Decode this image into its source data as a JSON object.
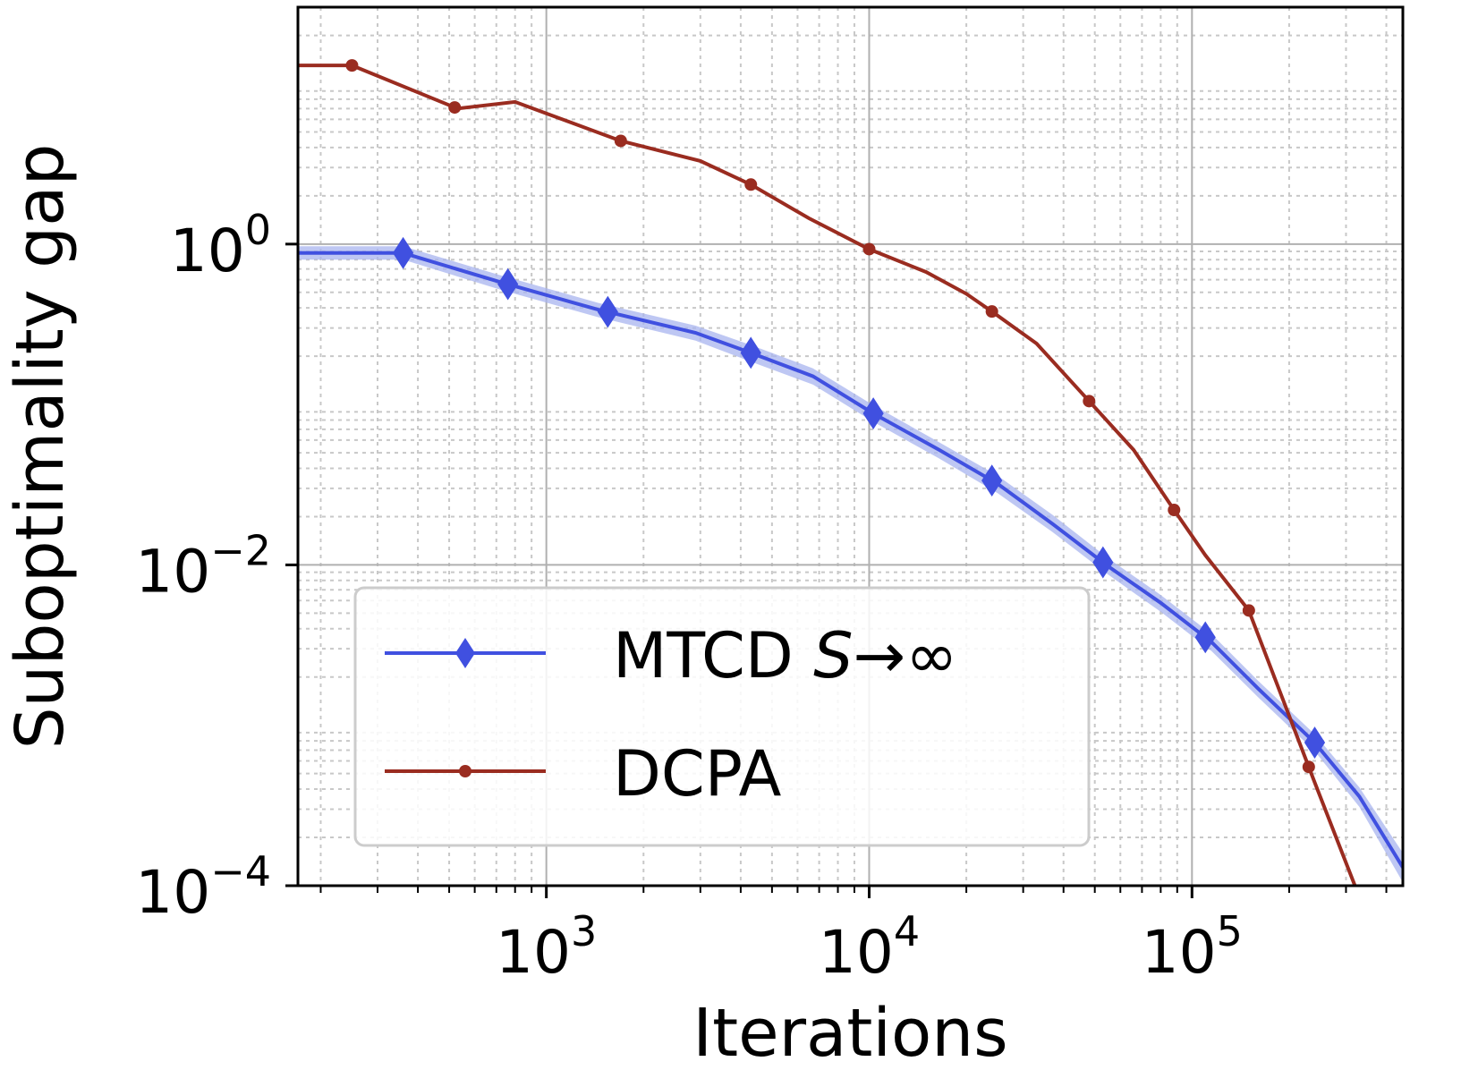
{
  "chart_data": {
    "type": "line",
    "title": "",
    "xlabel": "Iterations",
    "ylabel": "Suboptimality gap",
    "xscale": "log",
    "yscale": "log",
    "xlim": [
      170,
      450000
    ],
    "ylim": [
      0.0001,
      30
    ],
    "grid": true,
    "legend_position": "lower-left",
    "x_ticks": [
      {
        "value": 1000,
        "base": "10",
        "exp": "3"
      },
      {
        "value": 10000,
        "base": "10",
        "exp": "4"
      },
      {
        "value": 100000,
        "base": "10",
        "exp": "5"
      }
    ],
    "y_ticks": [
      {
        "value": 1,
        "base": "10",
        "exp": "0"
      },
      {
        "value": 0.01,
        "base": "10",
        "exp": "−2"
      },
      {
        "value": 0.0001,
        "base": "10",
        "exp": "−4"
      }
    ],
    "series": [
      {
        "name": "MTCD S→∞",
        "legend_main": "MTCD ",
        "legend_var": "S",
        "legend_tail": "→∞",
        "color": "#4050e0",
        "band_color": "#a8b4ef",
        "marker": "diamond",
        "x": [
          170,
          360,
          720,
          1450,
          2900,
          4300,
          6700,
          10300,
          16500,
          25000,
          37000,
          55000,
          80000,
          115000,
          160000,
          240000,
          330000,
          450000
        ],
        "y": [
          0.88,
          0.88,
          0.58,
          0.39,
          0.28,
          0.21,
          0.15,
          0.088,
          0.052,
          0.032,
          0.018,
          0.0098,
          0.0058,
          0.0033,
          0.0017,
          0.00078,
          0.00036,
          0.00013
        ],
        "band_low": [
          0.8,
          0.8,
          0.52,
          0.35,
          0.25,
          0.185,
          0.133,
          0.078,
          0.046,
          0.028,
          0.016,
          0.0087,
          0.0051,
          0.0029,
          0.0015,
          0.00069,
          0.00031,
          0.000105
        ],
        "band_high": [
          0.97,
          0.97,
          0.64,
          0.43,
          0.31,
          0.235,
          0.168,
          0.099,
          0.058,
          0.036,
          0.0205,
          0.011,
          0.0065,
          0.0037,
          0.0019,
          0.00088,
          0.00041,
          0.00016
        ],
        "marker_x": [
          360,
          760,
          1550,
          4300,
          10300,
          24000,
          53000,
          110000,
          240000
        ]
      },
      {
        "name": "DCPA",
        "color": "#9a2c20",
        "marker": "circle",
        "x": [
          170,
          250,
          530,
          800,
          1700,
          3000,
          4300,
          6500,
          10000,
          15000,
          20000,
          24000,
          33000,
          48000,
          66000,
          88000,
          110000,
          150000,
          240000,
          330000
        ],
        "y": [
          13,
          13,
          7.0,
          7.7,
          4.4,
          3.3,
          2.35,
          1.45,
          0.93,
          0.67,
          0.49,
          0.38,
          0.24,
          0.105,
          0.052,
          0.022,
          0.0115,
          0.0052,
          0.00044,
          8.5e-05
        ],
        "marker_x": [
          250,
          520,
          1700,
          4300,
          10000,
          24000,
          48000,
          88000,
          150000,
          230000
        ]
      }
    ]
  }
}
